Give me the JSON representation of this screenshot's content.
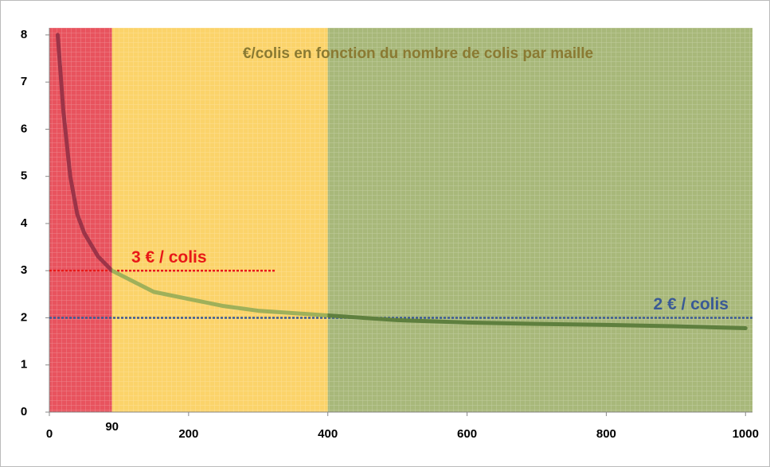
{
  "chart_data": {
    "type": "line",
    "title": "€/colis en fonction du nombre de colis par maille",
    "title_color": "#8a7a32",
    "x": [
      12,
      20,
      30,
      40,
      50,
      70,
      90,
      150,
      200,
      250,
      300,
      400,
      500,
      600,
      700,
      800,
      900,
      1000
    ],
    "series": [
      {
        "name": "€/colis",
        "values": [
          8,
          6.4,
          5,
          4.2,
          3.8,
          3.3,
          3,
          2.55,
          2.4,
          2.25,
          2.15,
          2.05,
          1.95,
          1.9,
          1.87,
          1.85,
          1.82,
          1.78
        ]
      }
    ],
    "regions": [
      {
        "from": 0,
        "to": 90,
        "color": "#e8535e",
        "line_color": "#9c3448"
      },
      {
        "from": 90,
        "to": 400,
        "color": "#fbd36a",
        "line_color": "#9fb05a"
      },
      {
        "from": 400,
        "to": 1010,
        "color": "#a8b87a",
        "line_color": "#5e7f3e"
      }
    ],
    "reference_lines": [
      {
        "y": 3,
        "xmax": 325,
        "label": "3 € / colis",
        "color": "#e81818"
      },
      {
        "y": 2,
        "xmax": 1010,
        "label": "2 € / colis",
        "color": "#3a5a96"
      }
    ],
    "annotations": [
      {
        "x": 90,
        "label": "90"
      }
    ],
    "xlim": [
      0,
      1010
    ],
    "xticks": [
      0,
      200,
      400,
      600,
      800,
      1000
    ],
    "ylim": [
      0,
      8.15
    ],
    "yticks": [
      0,
      1,
      2,
      3,
      4,
      5,
      6,
      7,
      8
    ]
  }
}
